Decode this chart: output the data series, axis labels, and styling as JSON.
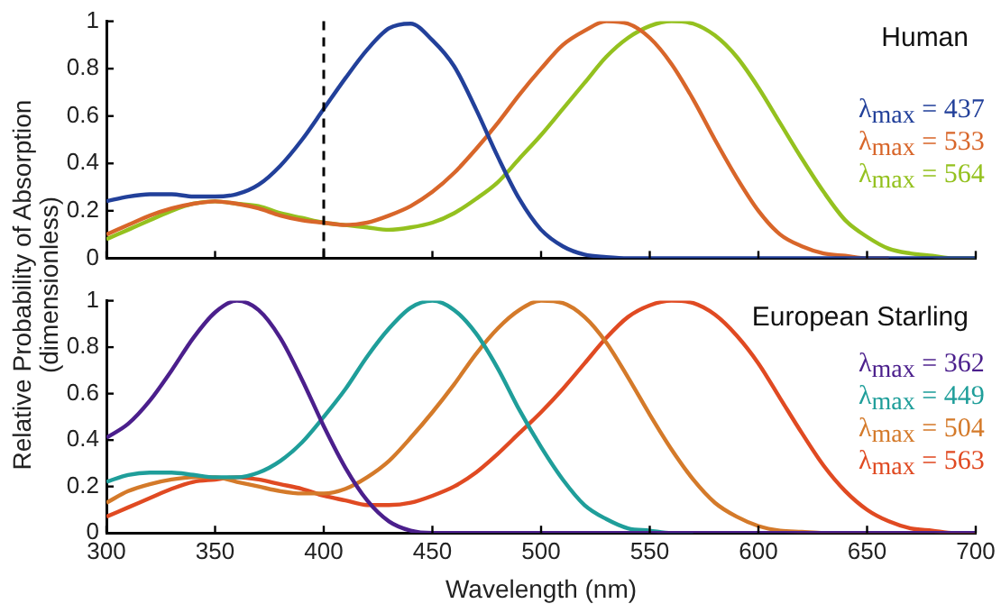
{
  "chart_data": [
    {
      "type": "line",
      "title": "Human",
      "ylabel": "Relative Probability of Absorption\n(dimensionless)",
      "legend": "right",
      "marker": "none",
      "tick_labels": "y",
      "x": [
        300,
        310,
        320,
        330,
        340,
        350,
        360,
        370,
        380,
        390,
        400,
        410,
        420,
        430,
        440,
        450,
        460,
        470,
        480,
        490,
        500,
        510,
        520,
        530,
        540,
        550,
        560,
        570,
        580,
        590,
        600,
        610,
        620,
        630,
        640,
        650,
        660,
        670,
        680,
        690,
        700
      ],
      "xlim": [
        300,
        700
      ],
      "xticks": [
        300,
        350,
        400,
        450,
        500,
        550,
        600,
        650,
        700
      ],
      "ylim": [
        0,
        1
      ],
      "yticks": [
        0,
        0.2,
        0.4,
        0.6,
        0.8,
        1
      ],
      "ref_lines": [
        {
          "axis": "x",
          "value": 400,
          "line_style": "dashed",
          "color": "#000000"
        }
      ],
      "series": [
        {
          "name": "λ$_{max}$ = 437",
          "color": "#22409a",
          "values": [
            0.24,
            0.26,
            0.27,
            0.27,
            0.26,
            0.26,
            0.27,
            0.31,
            0.39,
            0.5,
            0.63,
            0.76,
            0.88,
            0.97,
            0.99,
            0.92,
            0.81,
            0.63,
            0.43,
            0.25,
            0.12,
            0.05,
            0.015,
            0.005,
            0,
            0,
            0,
            0,
            0,
            0,
            0,
            0,
            0,
            0,
            0,
            0,
            0,
            0,
            0,
            0,
            0
          ]
        },
        {
          "name": "λ$_{max}$ = 533",
          "color": "#d8662a",
          "values": [
            0.1,
            0.14,
            0.18,
            0.21,
            0.23,
            0.24,
            0.23,
            0.21,
            0.18,
            0.16,
            0.15,
            0.14,
            0.15,
            0.18,
            0.22,
            0.28,
            0.36,
            0.46,
            0.57,
            0.69,
            0.8,
            0.9,
            0.96,
            1.0,
            0.99,
            0.93,
            0.82,
            0.67,
            0.5,
            0.34,
            0.2,
            0.1,
            0.05,
            0.02,
            0.01,
            0,
            0,
            null,
            null,
            null,
            null
          ]
        },
        {
          "name": "λ$_{max}$ = 564",
          "color": "#94c11f",
          "values": [
            0.08,
            0.12,
            0.16,
            0.2,
            0.23,
            0.24,
            0.23,
            0.22,
            0.19,
            0.17,
            0.15,
            0.14,
            0.13,
            0.12,
            0.13,
            0.15,
            0.19,
            0.25,
            0.32,
            0.42,
            0.52,
            0.63,
            0.74,
            0.85,
            0.93,
            0.98,
            1.0,
            0.99,
            0.94,
            0.85,
            0.72,
            0.57,
            0.42,
            0.28,
            0.16,
            0.09,
            0.04,
            0.02,
            0.01,
            0,
            0
          ]
        }
      ]
    },
    {
      "type": "line",
      "title": "European Starling",
      "xlabel": "Wavelength (nm)",
      "legend": "right",
      "marker": "none",
      "x": [
        300,
        310,
        320,
        330,
        340,
        350,
        360,
        370,
        380,
        390,
        400,
        410,
        420,
        430,
        440,
        450,
        460,
        470,
        480,
        490,
        500,
        510,
        520,
        530,
        540,
        550,
        560,
        570,
        580,
        590,
        600,
        610,
        620,
        630,
        640,
        650,
        660,
        670,
        680,
        690,
        700
      ],
      "xlim": [
        300,
        700
      ],
      "xticks": [
        300,
        350,
        400,
        450,
        500,
        550,
        600,
        650,
        700
      ],
      "ylim": [
        0,
        1
      ],
      "yticks": [
        0,
        0.2,
        0.4,
        0.6,
        0.8,
        1
      ],
      "series": [
        {
          "name": "λ$_{max}$ = 362",
          "color": "#4b1f8c",
          "values": [
            0.41,
            0.47,
            0.57,
            0.7,
            0.84,
            0.95,
            1.0,
            0.96,
            0.84,
            0.66,
            0.46,
            0.28,
            0.14,
            0.05,
            0.01,
            0,
            0,
            0,
            0,
            0,
            0,
            0,
            0,
            0,
            0,
            0,
            0,
            0,
            0,
            0,
            0,
            0,
            0,
            0,
            0,
            0,
            0,
            0,
            0,
            0,
            0
          ]
        },
        {
          "name": "λ$_{max}$ = 449",
          "color": "#1f9e9a",
          "values": [
            0.22,
            0.25,
            0.26,
            0.26,
            0.25,
            0.24,
            0.24,
            0.26,
            0.31,
            0.39,
            0.5,
            0.62,
            0.76,
            0.88,
            0.97,
            1.0,
            0.96,
            0.86,
            0.71,
            0.53,
            0.37,
            0.23,
            0.12,
            0.06,
            0.02,
            0.01,
            0,
            0,
            null,
            null,
            null,
            null,
            null,
            null,
            null,
            null,
            null,
            null,
            null,
            null,
            null
          ]
        },
        {
          "name": "λ$_{max}$ = 504",
          "color": "#d47a2a",
          "values": [
            0.13,
            0.18,
            0.21,
            0.23,
            0.24,
            0.24,
            0.22,
            0.2,
            0.18,
            0.17,
            0.17,
            0.19,
            0.24,
            0.31,
            0.41,
            0.52,
            0.64,
            0.77,
            0.88,
            0.96,
            1.0,
            0.99,
            0.93,
            0.82,
            0.67,
            0.51,
            0.36,
            0.23,
            0.13,
            0.07,
            0.03,
            0.01,
            0.005,
            0,
            0,
            0,
            0,
            0,
            0,
            0,
            0
          ]
        },
        {
          "name": "λ$_{max}$ = 563",
          "color": "#e04a22",
          "values": [
            0.07,
            0.11,
            0.15,
            0.19,
            0.22,
            0.23,
            0.24,
            0.23,
            0.21,
            0.19,
            0.16,
            0.14,
            0.12,
            0.12,
            0.13,
            0.16,
            0.2,
            0.26,
            0.34,
            0.43,
            0.52,
            0.62,
            0.73,
            0.84,
            0.93,
            0.98,
            1.0,
            0.99,
            0.94,
            0.85,
            0.73,
            0.58,
            0.43,
            0.29,
            0.18,
            0.1,
            0.05,
            0.02,
            0.01,
            0,
            0
          ]
        }
      ]
    }
  ]
}
